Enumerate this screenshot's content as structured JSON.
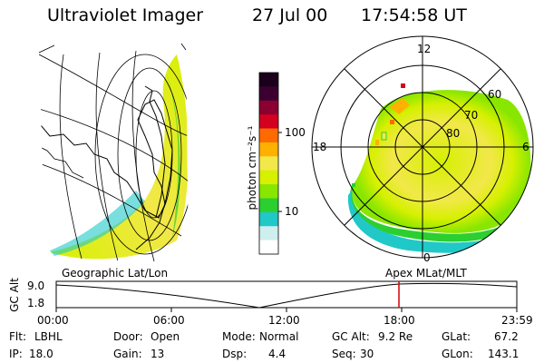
{
  "header": {
    "instrument": "Ultraviolet Imager",
    "date": "27 Jul 00",
    "time": "17:54:58 UT"
  },
  "colorbar": {
    "unit_label": "photon cm⁻²s⁻¹",
    "ticks": [
      "100",
      "10"
    ],
    "colors": [
      "#1a001a",
      "#3b0030",
      "#8a0030",
      "#d40020",
      "#ff6a00",
      "#ffb000",
      "#f2e84a",
      "#d6f000",
      "#88e600",
      "#2ccf30",
      "#20c8c8",
      "#cfeeee",
      "#ffffff"
    ]
  },
  "geo_panel": {
    "label": "Geographic Lat/Lon"
  },
  "polar_panel": {
    "label": "Apex MLat/MLT",
    "mlt_labels": {
      "top": "12",
      "left": "18",
      "right": "6",
      "bottom": "0"
    },
    "lat_labels": [
      "60",
      "70",
      "80"
    ]
  },
  "timeline": {
    "ylabel": "GC Alt",
    "yticks": [
      "9.0",
      "1.8"
    ],
    "xticks": [
      "00:00",
      "06:00",
      "12:00",
      "18:00",
      "23:59"
    ],
    "marker_color": "#d40000"
  },
  "info": {
    "flt_label": "Flt:",
    "flt_value": "LBHL",
    "door_label": "Door:",
    "door_value": "Open",
    "mode_label": "Mode:",
    "mode_value": "Normal",
    "gcalt_label": "GC Alt:",
    "gcalt_value": "9.2 Re",
    "glat_label": "GLat:",
    "glat_value": "67.2",
    "ip_label": "IP:",
    "ip_value": "18.0",
    "gain_label": "Gain:",
    "gain_value": "13",
    "dsp_label": "Dsp:",
    "dsp_value": "4.4",
    "seq_label": "Seq:",
    "seq_value": "30",
    "glon_label": "GLon:",
    "glon_value": "143.1"
  }
}
